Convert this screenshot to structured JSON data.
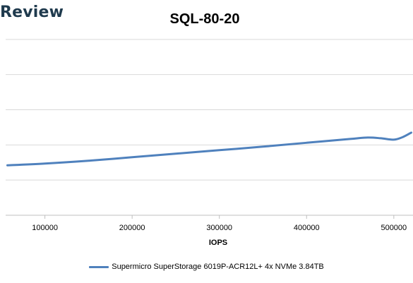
{
  "logo": {
    "text": "Review"
  },
  "chart_data": {
    "type": "line",
    "title": "SQL-80-20",
    "xlabel": "IOPS",
    "ylabel": "",
    "xlim": [
      55000,
      522000
    ],
    "ylim": [
      0,
      6
    ],
    "x_ticks": [
      100000,
      200000,
      300000,
      400000,
      500000
    ],
    "y_gridlines": [
      1,
      2,
      3,
      4,
      5
    ],
    "grid": true,
    "legend_position": "bottom",
    "colors": {
      "series": "#4f81bd",
      "grid": "#d9d9d9"
    },
    "series": [
      {
        "name": "Supermicro SuperStorage 6019P-ACR12L+ 4x NVMe 3.84TB",
        "x": [
          57000,
          100000,
          150000,
          200000,
          250000,
          300000,
          350000,
          400000,
          450000,
          470000,
          485000,
          500000,
          510000,
          520000
        ],
        "y": [
          1.42,
          1.47,
          1.55,
          1.65,
          1.75,
          1.85,
          1.95,
          2.06,
          2.17,
          2.21,
          2.19,
          2.15,
          2.22,
          2.35
        ]
      }
    ]
  }
}
